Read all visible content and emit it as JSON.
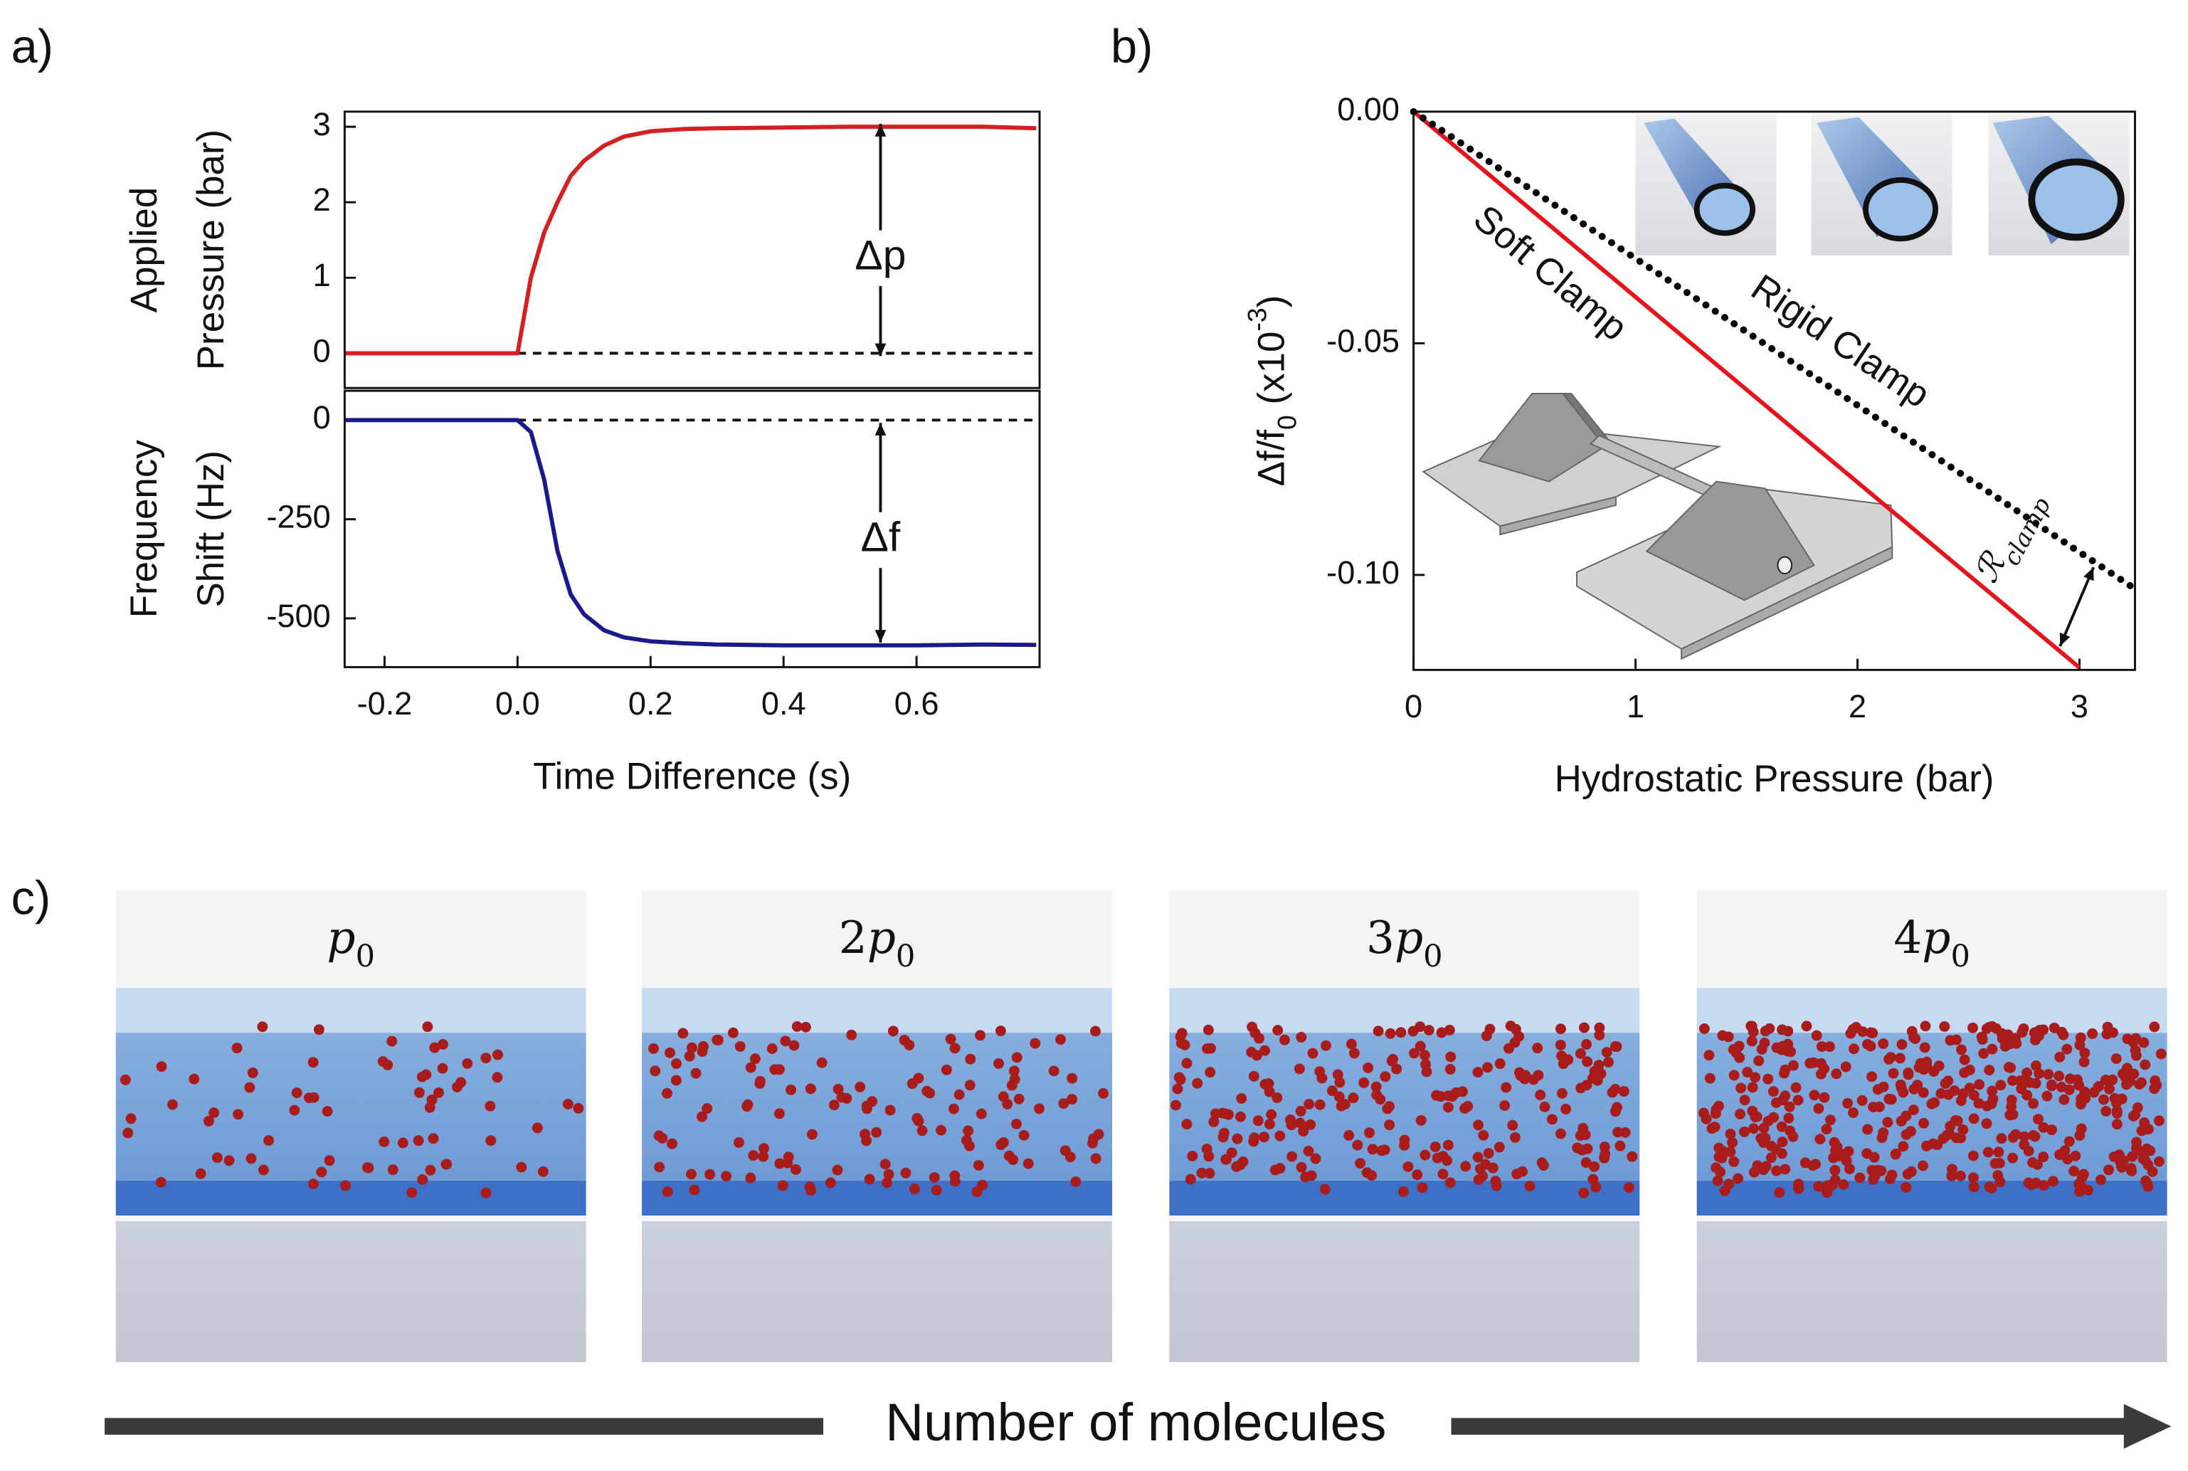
{
  "figure": {
    "panel_labels": [
      "a)",
      "b)",
      "c)"
    ],
    "images": [
      {
        "label": [
          "p",
          "0"
        ]
      },
      {
        "label": [
          "2",
          "p",
          "0"
        ]
      },
      {
        "label": [
          "3",
          "p",
          "0"
        ]
      },
      {
        "label": [
          "4",
          "p",
          "0"
        ]
      }
    ],
    "arrow_label": "Number of molecules"
  },
  "chart_data": [
    {
      "type": "line",
      "ylabel": [
        "Applied",
        "Pressure (bar)"
      ],
      "x": [
        -0.26,
        0,
        0.02,
        0.04,
        0.06,
        0.08,
        0.1,
        0.13,
        0.16,
        0.2,
        0.25,
        0.3,
        0.4,
        0.5,
        0.6,
        0.7,
        0.78
      ],
      "series": [
        {
          "color": "#d42020",
          "values": [
            0,
            0,
            1.0,
            1.6,
            2.0,
            2.35,
            2.55,
            2.75,
            2.87,
            2.94,
            2.97,
            2.98,
            2.99,
            3.0,
            3.0,
            3.0,
            2.98
          ]
        }
      ],
      "xlim": [
        -0.26,
        0.785
      ],
      "ylim": [
        -0.46,
        3.2
      ],
      "yticks": [
        0,
        1,
        2,
        3
      ],
      "hline": 0,
      "annotation": "Δp"
    },
    {
      "type": "line",
      "ylabel": [
        "Frequency",
        "Shift (Hz)"
      ],
      "xlabel": "Time Difference (s)",
      "x": [
        -0.26,
        0,
        0.02,
        0.04,
        0.06,
        0.08,
        0.1,
        0.13,
        0.16,
        0.2,
        0.25,
        0.3,
        0.4,
        0.5,
        0.6,
        0.7,
        0.78
      ],
      "series": [
        {
          "color": "#1a1a8c",
          "values": [
            0,
            0,
            -30,
            -150,
            -330,
            -440,
            -490,
            -530,
            -548,
            -558,
            -563,
            -566,
            -568,
            -568,
            -568,
            -566,
            -567
          ]
        }
      ],
      "xlim": [
        -0.26,
        0.785
      ],
      "ylim": [
        -623,
        74
      ],
      "yticks": [
        0,
        -250,
        -500
      ],
      "xticks": [
        -0.2,
        {
          "value": 0,
          "label": "0.0"
        },
        0.2,
        0.4,
        0.6
      ],
      "hline": 0,
      "annotation": "Δf"
    },
    {
      "type": "line",
      "ylabel": [
        "Δf/f",
        "0",
        " (x10",
        "-3",
        ")"
      ],
      "xlabel": "Hydrostatic Pressure (bar)",
      "series": [
        {
          "name": "Soft Clamp",
          "color": "#e8141c",
          "x": [
            0,
            3
          ],
          "values": [
            0,
            -0.12
          ]
        },
        {
          "name": "Rigid Clamp",
          "color": "#000000",
          "style": "dotted",
          "x": [
            0,
            3.25
          ],
          "values": [
            0,
            -0.103
          ]
        }
      ],
      "xlim": [
        0,
        3.25
      ],
      "ylim": [
        -0.1205,
        0
      ],
      "xticks": [
        0,
        1,
        2,
        3
      ],
      "yticks": [
        {
          "value": 0,
          "label": "0.00"
        },
        {
          "value": -0.05,
          "label": "-0.05"
        },
        {
          "value": -0.1,
          "label": "-0.10"
        }
      ],
      "annotation": [
        "ℛ",
        "clamp"
      ]
    }
  ]
}
